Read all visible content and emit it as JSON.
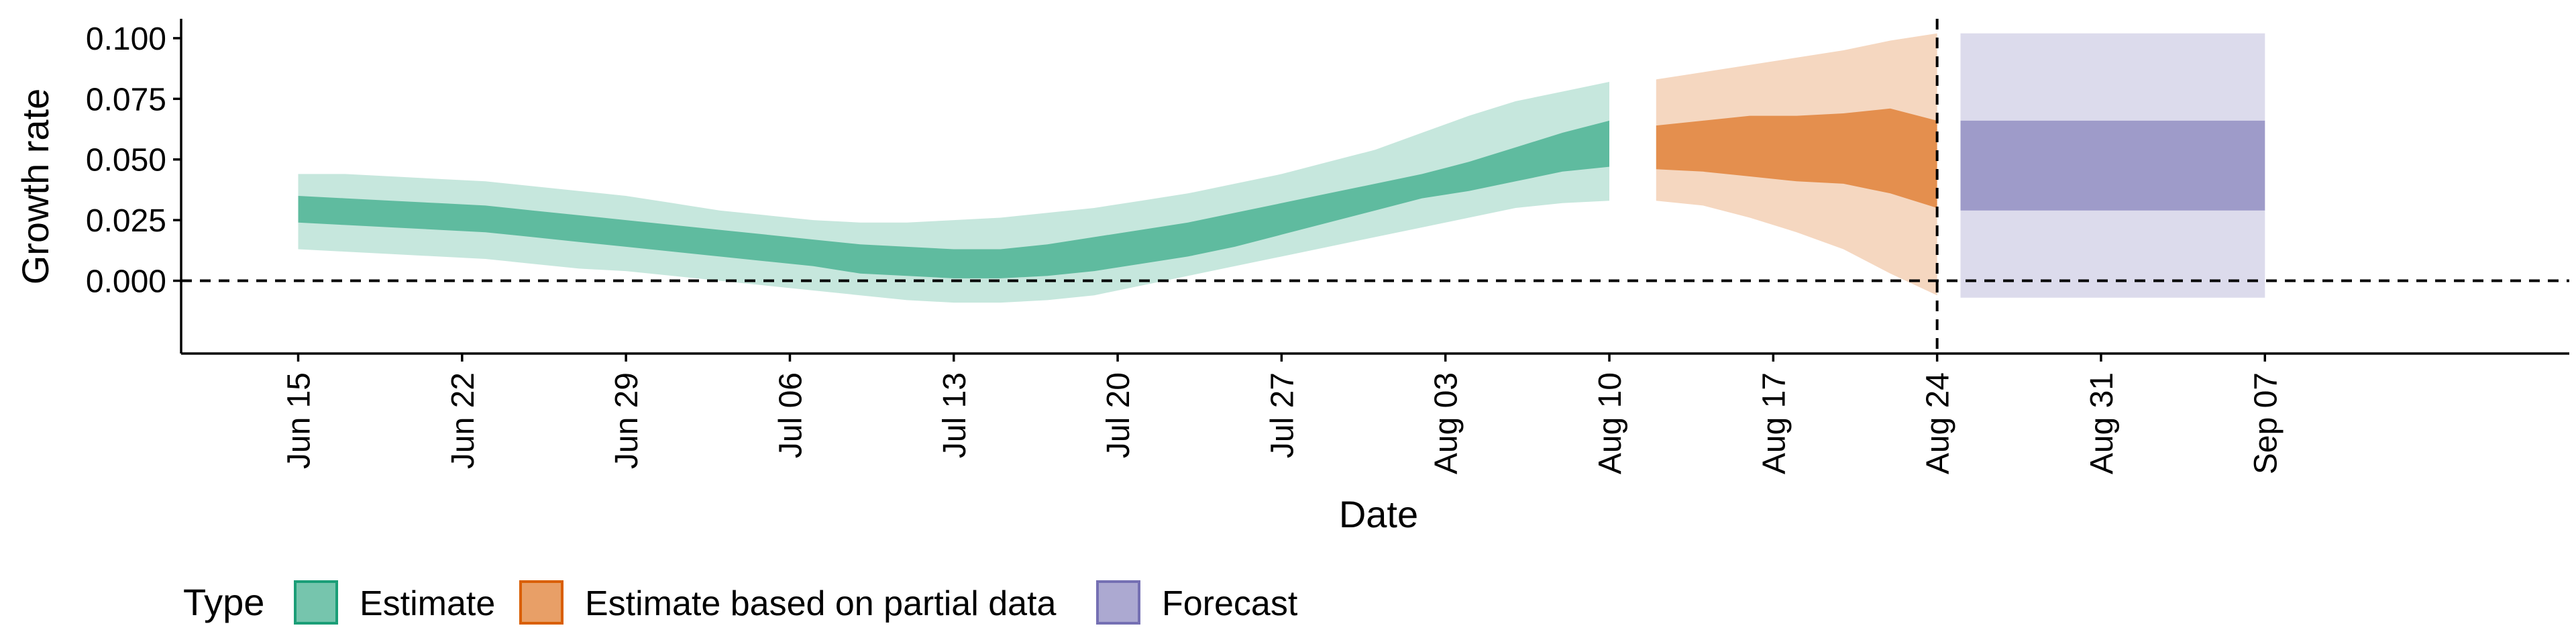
{
  "chart_data": {
    "type": "area",
    "title": "",
    "xlabel": "Date",
    "ylabel": "Growth rate",
    "ylim": [
      -0.03,
      0.108
    ],
    "yticks": [
      "0.000",
      "0.025",
      "0.050",
      "0.075",
      "0.100"
    ],
    "ytick_values": [
      0.0,
      0.025,
      0.05,
      0.075,
      0.1
    ],
    "x_start_date": "Jun 15",
    "x_range_days": [
      -5,
      97
    ],
    "xticks": [
      {
        "day": 0,
        "label": "Jun 15"
      },
      {
        "day": 7,
        "label": "Jun 22"
      },
      {
        "day": 14,
        "label": "Jun 29"
      },
      {
        "day": 21,
        "label": "Jul 06"
      },
      {
        "day": 28,
        "label": "Jul 13"
      },
      {
        "day": 35,
        "label": "Jul 20"
      },
      {
        "day": 42,
        "label": "Jul 27"
      },
      {
        "day": 49,
        "label": "Aug 03"
      },
      {
        "day": 56,
        "label": "Aug 10"
      },
      {
        "day": 63,
        "label": "Aug 17"
      },
      {
        "day": 70,
        "label": "Aug 24"
      },
      {
        "day": 77,
        "label": "Aug 31"
      },
      {
        "day": 84,
        "label": "Sep 07"
      }
    ],
    "reference_lines": {
      "horizontal_y": 0.0,
      "vertical_day": 70
    },
    "series": [
      {
        "name": "Estimate",
        "color": "#1b9e77",
        "days": [
          0,
          2,
          4,
          6,
          8,
          10,
          12,
          14,
          16,
          18,
          20,
          22,
          24,
          26,
          28,
          30,
          32,
          34,
          36,
          38,
          40,
          42,
          44,
          46,
          48,
          50,
          52,
          54,
          56
        ],
        "outer_lo": [
          0.013,
          0.012,
          0.011,
          0.01,
          0.009,
          0.007,
          0.005,
          0.004,
          0.002,
          0.0,
          -0.002,
          -0.004,
          -0.006,
          -0.008,
          -0.009,
          -0.009,
          -0.008,
          -0.006,
          -0.002,
          0.002,
          0.006,
          0.01,
          0.014,
          0.018,
          0.022,
          0.026,
          0.03,
          0.032,
          0.033
        ],
        "inner_lo": [
          0.024,
          0.023,
          0.022,
          0.021,
          0.02,
          0.018,
          0.016,
          0.014,
          0.012,
          0.01,
          0.008,
          0.006,
          0.003,
          0.002,
          0.001,
          0.001,
          0.002,
          0.004,
          0.007,
          0.01,
          0.014,
          0.019,
          0.024,
          0.029,
          0.034,
          0.037,
          0.041,
          0.045,
          0.047
        ],
        "inner_hi": [
          0.035,
          0.034,
          0.033,
          0.032,
          0.031,
          0.029,
          0.027,
          0.025,
          0.023,
          0.021,
          0.019,
          0.017,
          0.015,
          0.014,
          0.013,
          0.013,
          0.015,
          0.018,
          0.021,
          0.024,
          0.028,
          0.032,
          0.036,
          0.04,
          0.044,
          0.049,
          0.055,
          0.061,
          0.066
        ],
        "outer_hi": [
          0.044,
          0.044,
          0.043,
          0.042,
          0.041,
          0.039,
          0.037,
          0.035,
          0.032,
          0.029,
          0.027,
          0.025,
          0.024,
          0.024,
          0.025,
          0.026,
          0.028,
          0.03,
          0.033,
          0.036,
          0.04,
          0.044,
          0.049,
          0.054,
          0.061,
          0.068,
          0.074,
          0.078,
          0.082
        ]
      },
      {
        "name": "Estimate based on partial data",
        "color": "#d95f02",
        "days": [
          58,
          60,
          62,
          64,
          66,
          68,
          70
        ],
        "outer_lo": [
          0.033,
          0.031,
          0.026,
          0.02,
          0.013,
          0.003,
          -0.006
        ],
        "inner_lo": [
          0.046,
          0.045,
          0.043,
          0.041,
          0.04,
          0.036,
          0.03
        ],
        "inner_hi": [
          0.064,
          0.066,
          0.068,
          0.068,
          0.069,
          0.071,
          0.066
        ],
        "outer_hi": [
          0.083,
          0.086,
          0.089,
          0.092,
          0.095,
          0.099,
          0.102
        ]
      },
      {
        "name": "Forecast",
        "color": "#7570b3",
        "days": [
          71,
          84
        ],
        "outer_lo": [
          -0.007,
          -0.007
        ],
        "inner_lo": [
          0.029,
          0.029
        ],
        "inner_hi": [
          0.066,
          0.066
        ],
        "outer_hi": [
          0.102,
          0.102
        ]
      }
    ],
    "legend": {
      "title": "Type",
      "position": "bottom",
      "entries": [
        "Estimate",
        "Estimate based on partial data",
        "Forecast"
      ]
    }
  }
}
